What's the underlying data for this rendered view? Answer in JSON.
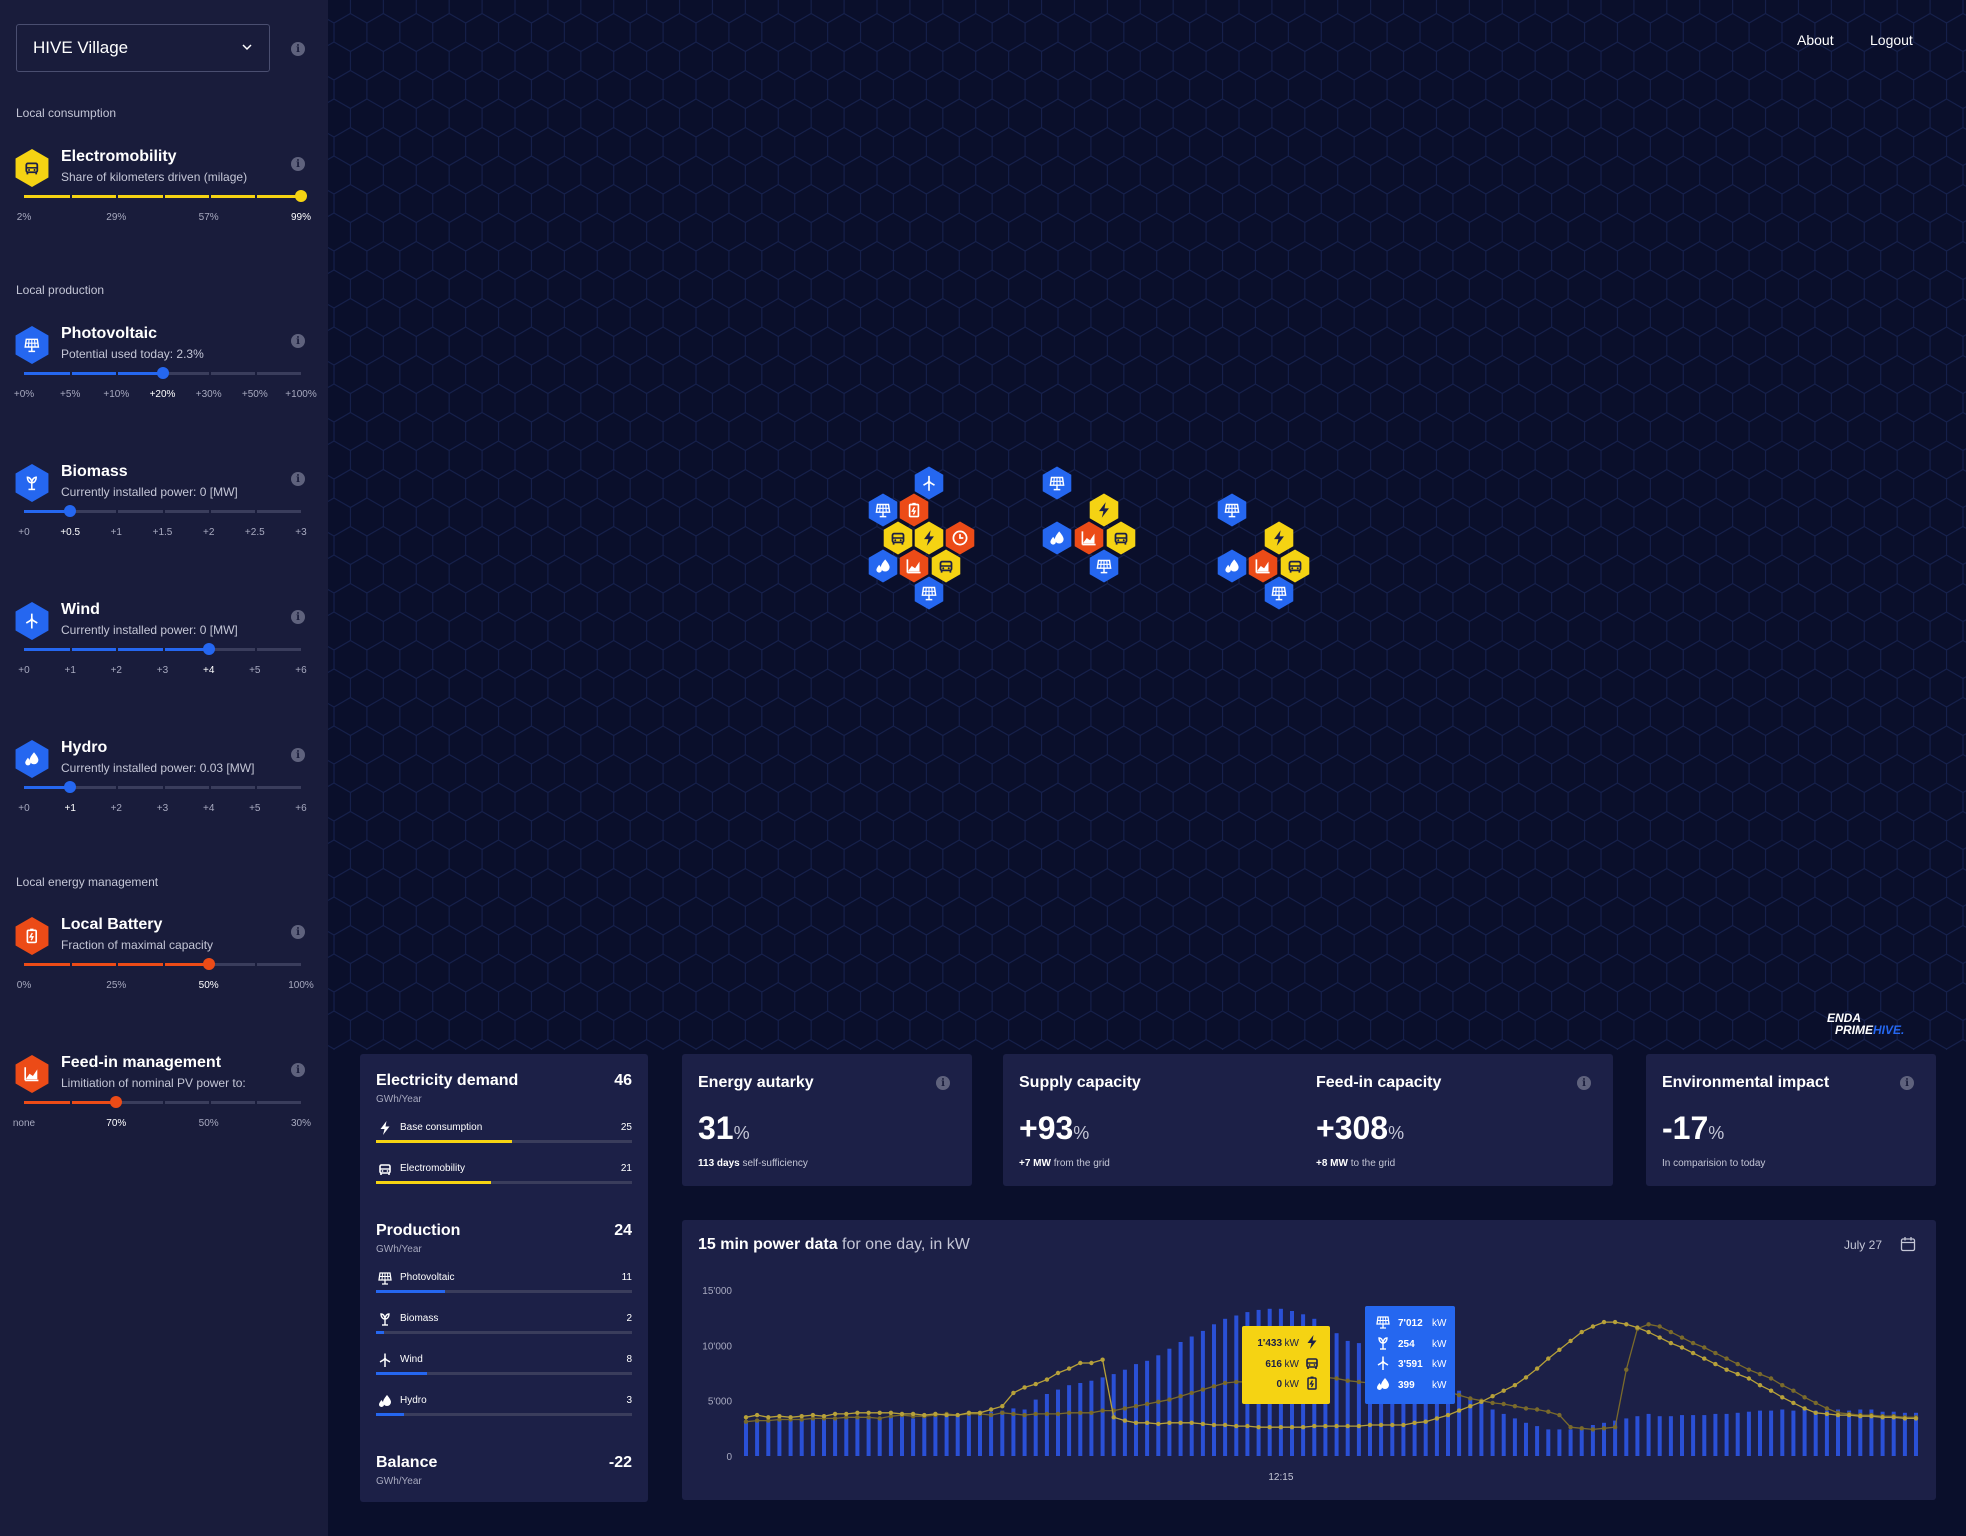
{
  "region_select": {
    "value": "HIVE Village"
  },
  "nav": {
    "about": "About",
    "logout": "Logout"
  },
  "sidebar": {
    "local_consumption_label": "Local consumption",
    "local_production_label": "Local production",
    "local_energy_management_label": "Local energy management",
    "params": [
      {
        "title": "Electromobility",
        "subtitle": "Share of kilometers driven (milage)",
        "color": "#f5d313",
        "icon": "car-icon",
        "ticks": [
          "2%",
          "29%",
          "57%",
          "99%"
        ],
        "value_index": 3,
        "segments": 6
      },
      {
        "title": "Photovoltaic",
        "subtitle": "Potential used today: 2.3%",
        "color": "#2567f0",
        "icon": "solar-panel-icon",
        "ticks": [
          "+0%",
          "+5%",
          "+10%",
          "+20%",
          "+30%",
          "+50%",
          "+100%"
        ],
        "value_index": 3,
        "segments": 6
      },
      {
        "title": "Biomass",
        "subtitle": "Currently installed power: 0 [MW]",
        "color": "#2567f0",
        "icon": "biomass-icon",
        "ticks": [
          "+0",
          "+0.5",
          "+1",
          "+1.5",
          "+2",
          "+2.5",
          "+3"
        ],
        "value_index": 1,
        "segments": 6
      },
      {
        "title": "Wind",
        "subtitle": "Currently installed power: 0 [MW]",
        "color": "#2567f0",
        "icon": "wind-turbine-icon",
        "ticks": [
          "+0",
          "+1",
          "+2",
          "+3",
          "+4",
          "+5",
          "+6"
        ],
        "value_index": 4,
        "segments": 6
      },
      {
        "title": "Hydro",
        "subtitle": "Currently installed power: 0.03 [MW]",
        "color": "#2567f0",
        "icon": "hydro-icon",
        "ticks": [
          "+0",
          "+1",
          "+2",
          "+3",
          "+4",
          "+5",
          "+6"
        ],
        "value_index": 1,
        "segments": 6
      },
      {
        "title": "Local Battery",
        "subtitle": "Fraction of maximal capacity",
        "color": "#ec4b17",
        "icon": "battery-icon",
        "ticks": [
          "0%",
          "25%",
          "50%",
          "100%"
        ],
        "value_index": 2,
        "segments": 6
      },
      {
        "title": "Feed-in management",
        "subtitle": "Limitiation of nominal PV power to:",
        "color": "#ec4b17",
        "icon": "feed-in-chart-icon",
        "ticks": [
          "none",
          "70%",
          "50%",
          "30%"
        ],
        "value_index": 1,
        "segments": 6
      }
    ]
  },
  "logo": {
    "line1": "ENDA",
    "line2a": "PRIME",
    "line2b": "HIVE."
  },
  "demand_card": {
    "title": "Electricity demand",
    "value": "46",
    "unit": "GWh/Year",
    "rows": [
      {
        "label": "Base consumption",
        "value": "25",
        "fraction": 0.53,
        "color": "#f5d313",
        "icon": "lightning-icon"
      },
      {
        "label": "Electromobility",
        "value": "21",
        "fraction": 0.45,
        "color": "#f5d313",
        "icon": "car-icon"
      }
    ],
    "production_title": "Production",
    "production_value": "24",
    "production_unit": "GWh/Year",
    "production_rows": [
      {
        "label": "Photovoltaic",
        "value": "11",
        "fraction": 0.27,
        "color": "#2567f0",
        "icon": "solar-panel-icon"
      },
      {
        "label": "Biomass",
        "value": "2",
        "fraction": 0.03,
        "color": "#2567f0",
        "icon": "biomass-icon"
      },
      {
        "label": "Wind",
        "value": "8",
        "fraction": 0.2,
        "color": "#2567f0",
        "icon": "wind-turbine-icon"
      },
      {
        "label": "Hydro",
        "value": "3",
        "fraction": 0.11,
        "color": "#2567f0",
        "icon": "hydro-icon"
      }
    ],
    "balance_title": "Balance",
    "balance_value": "-22",
    "balance_unit": "GWh/Year"
  },
  "autarky_card": {
    "title": "Energy autarky",
    "value": "31",
    "unit": "%",
    "sub_bold": "113 days",
    "sub_rest": "self-sufficiency"
  },
  "supply_card": {
    "supply_title": "Supply capacity",
    "supply_value": "+93",
    "supply_unit": "%",
    "supply_sub_bold": "+7 MW",
    "supply_sub_rest": "from the grid",
    "feedin_title": "Feed-in capacity",
    "feedin_value": "+308",
    "feedin_unit": "%",
    "feedin_sub_bold": "+8 MW",
    "feedin_sub_rest": "to the grid"
  },
  "env_card": {
    "title": "Environmental impact",
    "value": "-17",
    "unit": "%",
    "sub": "In comparision to today"
  },
  "power_chart": {
    "title_bold": "15 min power data",
    "title_rest": "for one day, in kW",
    "date": "July 27",
    "tooltip_demand": [
      {
        "value": "1'433",
        "unit": "kW",
        "icon": "lightning-icon"
      },
      {
        "value": "616",
        "unit": "kW",
        "icon": "car-icon"
      },
      {
        "value": "0",
        "unit": "kW",
        "icon": "battery-icon"
      }
    ],
    "tooltip_production": [
      {
        "value": "7'012",
        "unit": "kW",
        "icon": "solar-panel-icon"
      },
      {
        "value": "254",
        "unit": "kW",
        "icon": "biomass-icon"
      },
      {
        "value": "3'591",
        "unit": "kW",
        "icon": "wind-turbine-icon"
      },
      {
        "value": "399",
        "unit": "kW",
        "icon": "hydro-icon"
      }
    ]
  },
  "chart_data": {
    "type": "bar",
    "title": "15 min power data for one day, in kW",
    "ylim": [
      0,
      15000
    ],
    "yticks": [
      "15'000",
      "10'000",
      "5'000",
      "0"
    ],
    "ytick_values": [
      15000,
      10000,
      5000,
      0
    ],
    "x_marker_label": "12:15",
    "x_marker_index": 48,
    "series": [
      {
        "name": "production",
        "kind": "bar",
        "color": "#2a50d6",
        "values": [
          3200,
          3300,
          3100,
          3300,
          3200,
          3400,
          3300,
          3500,
          3300,
          3400,
          3600,
          3500,
          3300,
          3700,
          3600,
          3400,
          3800,
          3700,
          3600,
          3800,
          3900,
          3700,
          4000,
          4100,
          4300,
          4200,
          5100,
          5600,
          6000,
          6400,
          6600,
          6800,
          7100,
          7400,
          7800,
          8300,
          8600,
          9100,
          9700,
          10300,
          10800,
          11300,
          11900,
          12400,
          12700,
          13000,
          13200,
          13300,
          13300,
          13100,
          12800,
          12400,
          11700,
          11100,
          10400,
          10200,
          10100,
          10300,
          9800,
          9200,
          8500,
          7900,
          7300,
          6600,
          5900,
          5300,
          4800,
          4200,
          3800,
          3400,
          3000,
          2700,
          2400,
          2400,
          2400,
          2500,
          2800,
          3000,
          3200,
          3400,
          3600,
          3800,
          3600,
          3600,
          3700,
          3700,
          3700,
          3800,
          3800,
          3900,
          4000,
          4100,
          4100,
          4200,
          4100,
          4200,
          4100,
          4100,
          4200,
          4100,
          4200,
          4200,
          4000,
          4000,
          3900,
          3900
        ]
      },
      {
        "name": "demand",
        "kind": "line",
        "color": "#b7a13a",
        "values": [
          3500,
          3700,
          3500,
          3600,
          3500,
          3600,
          3700,
          3600,
          3800,
          3800,
          3900,
          3900,
          3900,
          3900,
          3800,
          3800,
          3700,
          3800,
          3700,
          3700,
          3900,
          3900,
          4200,
          4500,
          5700,
          6200,
          6500,
          6900,
          7500,
          7900,
          8400,
          8400,
          8700,
          3500,
          3200,
          3000,
          3000,
          2900,
          3000,
          3000,
          3000,
          2900,
          2800,
          2800,
          2700,
          2700,
          2600,
          2600,
          2600,
          2600,
          2600,
          2700,
          2700,
          2700,
          2700,
          2700,
          2800,
          2800,
          2800,
          2800,
          3000,
          3100,
          3400,
          3700,
          4100,
          4500,
          4900,
          5400,
          5900,
          6400,
          7100,
          7900,
          8800,
          9600,
          10400,
          11200,
          11700,
          12100,
          12100,
          11900,
          11600,
          11200,
          10700,
          10200,
          9800,
          9300,
          8800,
          8300,
          7800,
          7400,
          7000,
          6400,
          5900,
          5300,
          4800,
          4300,
          3900,
          3800,
          3700,
          3700,
          3600,
          3600,
          3500,
          3500,
          3400,
          3400
        ]
      },
      {
        "name": "demand-secondary",
        "kind": "line",
        "color": "#7a6a2b",
        "values": [
          3100,
          3200,
          3200,
          3300,
          3300,
          3300,
          3400,
          3400,
          3400,
          3500,
          3500,
          3500,
          3400,
          3600,
          3700,
          3600,
          3600,
          3700,
          3800,
          3700,
          3800,
          3800,
          3700,
          3900,
          3800,
          3700,
          3800,
          3800,
          3800,
          3900,
          3900,
          3900,
          4100,
          4100,
          4300,
          4500,
          4700,
          4900,
          5100,
          5400,
          5700,
          6000,
          6300,
          6600,
          6700,
          6700,
          6800,
          7000,
          7200,
          7200,
          7200,
          7200,
          7100,
          7000,
          6800,
          6700,
          6600,
          6500,
          6400,
          6300,
          6200,
          6100,
          6000,
          5800,
          5500,
          5200,
          5000,
          4800,
          4700,
          4500,
          4300,
          4200,
          4000,
          3700,
          2600,
          2500,
          2400,
          2500,
          2600,
          7800,
          11500,
          11900,
          11700,
          11200,
          10700,
          10200,
          9800,
          9300,
          8800,
          8300,
          7800,
          7400,
          7000,
          6400,
          5900,
          5300,
          4800,
          4300,
          3900,
          3800,
          3700,
          3700,
          3600,
          3600,
          3500,
          3500
        ]
      }
    ]
  },
  "colors": {
    "yellow": "#f5d313",
    "blue": "#2567f0",
    "orange": "#ec4b17",
    "panel": "#1c2047",
    "background": "#0a0f2b"
  }
}
